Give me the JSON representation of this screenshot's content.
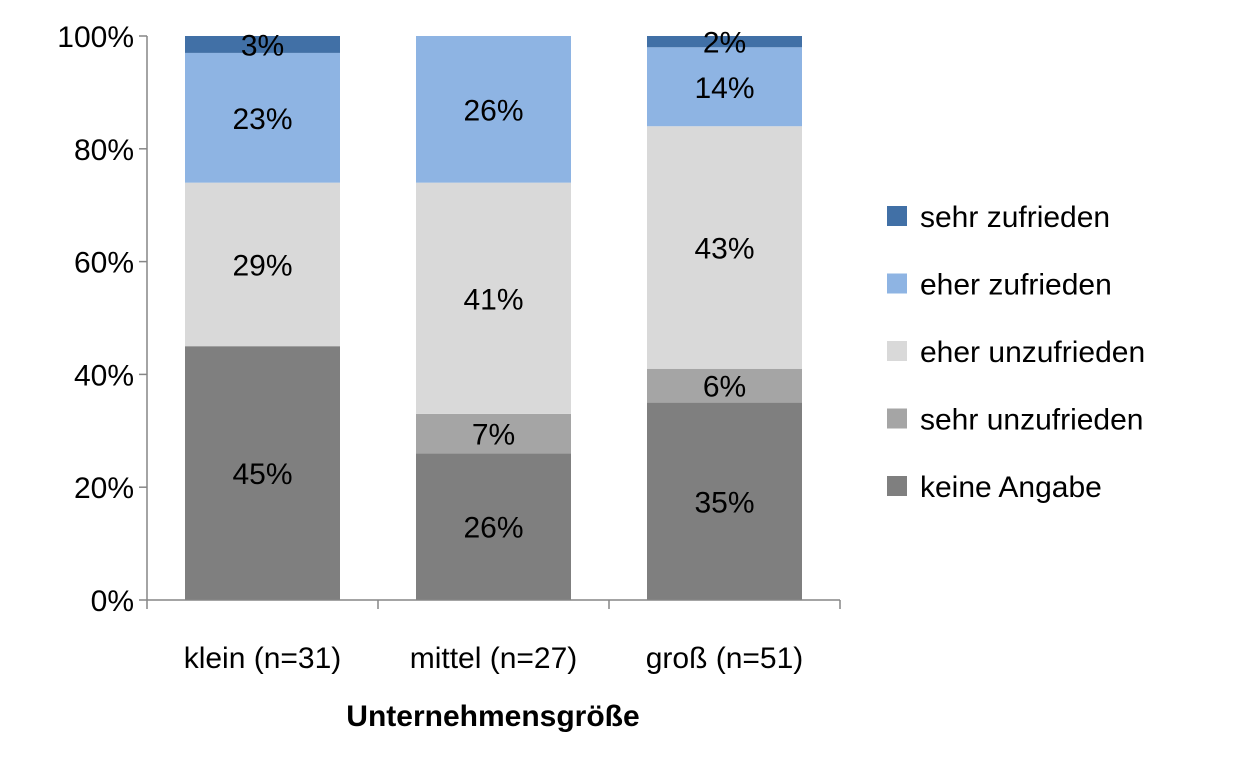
{
  "chart_data": {
    "type": "bar",
    "stacked": true,
    "normalized_percent": true,
    "xlabel": "Unternehmensgröße",
    "ylabel": "",
    "ylim": [
      0,
      100
    ],
    "yticks": [
      "0%",
      "20%",
      "40%",
      "60%",
      "80%",
      "100%"
    ],
    "grid": false,
    "legend_position": "right",
    "categories": [
      "klein (n=31)",
      "mittel (n=27)",
      "groß (n=51)"
    ],
    "series": [
      {
        "name": "keine Angabe",
        "color": "#7f7f7f",
        "values": [
          45,
          26,
          35
        ],
        "labels": [
          "45%",
          "26%",
          "35%"
        ]
      },
      {
        "name": "sehr unzufrieden",
        "color": "#a5a5a5",
        "values": [
          0,
          7,
          6
        ],
        "labels": [
          "",
          "7%",
          "6%"
        ]
      },
      {
        "name": "eher unzufrieden",
        "color": "#d9d9d9",
        "values": [
          29,
          41,
          43
        ],
        "labels": [
          "29%",
          "41%",
          "43%"
        ]
      },
      {
        "name": "eher zufrieden",
        "color": "#8eb4e3",
        "values": [
          23,
          26,
          14
        ],
        "labels": [
          "23%",
          "26%",
          "14%"
        ]
      },
      {
        "name": "sehr zufrieden",
        "color": "#4170a6",
        "values": [
          3,
          0,
          2
        ],
        "labels": [
          "3%",
          "",
          "2%"
        ]
      }
    ]
  }
}
